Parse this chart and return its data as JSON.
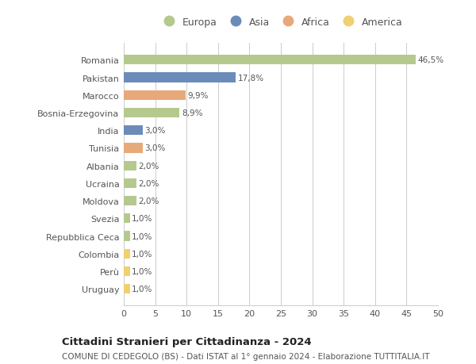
{
  "countries": [
    "Romania",
    "Pakistan",
    "Marocco",
    "Bosnia-Erzegovina",
    "India",
    "Tunisia",
    "Albania",
    "Ucraina",
    "Moldova",
    "Svezia",
    "Repubblica Ceca",
    "Colombia",
    "Perù",
    "Uruguay"
  ],
  "values": [
    46.5,
    17.8,
    9.9,
    8.9,
    3.0,
    3.0,
    2.0,
    2.0,
    2.0,
    1.0,
    1.0,
    1.0,
    1.0,
    1.0
  ],
  "labels": [
    "46,5%",
    "17,8%",
    "9,9%",
    "8,9%",
    "3,0%",
    "3,0%",
    "2,0%",
    "2,0%",
    "2,0%",
    "1,0%",
    "1,0%",
    "1,0%",
    "1,0%",
    "1,0%"
  ],
  "continents": [
    "Europa",
    "Asia",
    "Africa",
    "Europa",
    "Asia",
    "Africa",
    "Europa",
    "Europa",
    "Europa",
    "Europa",
    "Europa",
    "America",
    "America",
    "America"
  ],
  "colors": {
    "Europa": "#b5c98e",
    "Asia": "#6b8cba",
    "Africa": "#e8a97a",
    "America": "#f0d070"
  },
  "legend_order": [
    "Europa",
    "Asia",
    "Africa",
    "America"
  ],
  "xlim": [
    0,
    50
  ],
  "xticks": [
    0,
    5,
    10,
    15,
    20,
    25,
    30,
    35,
    40,
    45,
    50
  ],
  "title": "Cittadini Stranieri per Cittadinanza - 2024",
  "subtitle": "COMUNE DI CEDEGOLO (BS) - Dati ISTAT al 1° gennaio 2024 - Elaborazione TUTTITALIA.IT",
  "background_color": "#ffffff",
  "grid_color": "#cccccc",
  "bar_height": 0.55,
  "figsize": [
    6.0,
    4.6
  ],
  "dpi": 100
}
